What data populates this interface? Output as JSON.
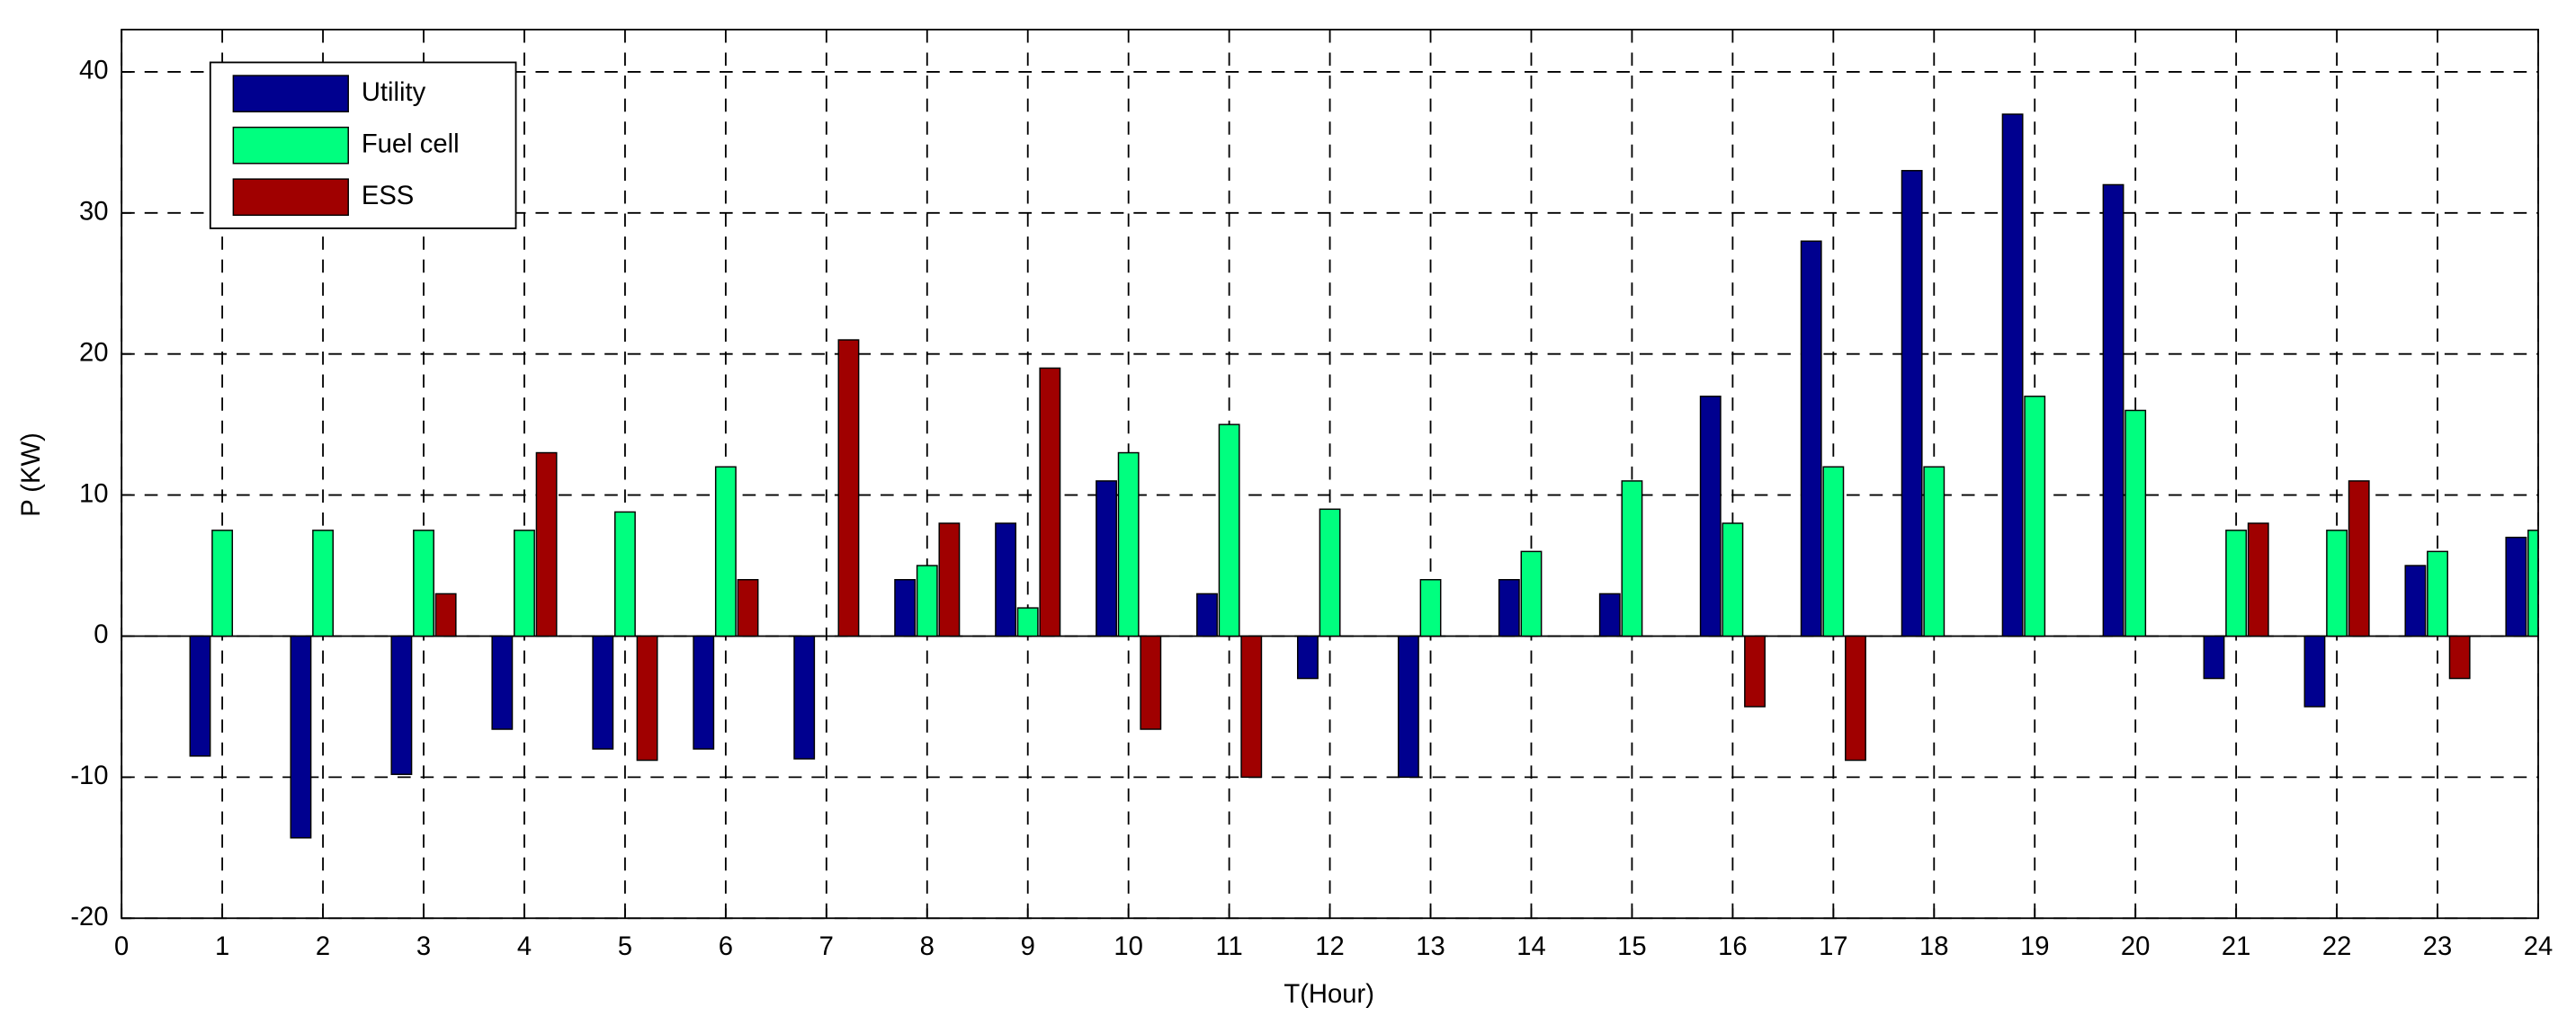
{
  "chart_data": {
    "type": "bar",
    "x_label": "T(Hour)",
    "y_label": "P (KW)",
    "x": [
      1,
      2,
      3,
      4,
      5,
      6,
      7,
      8,
      9,
      10,
      11,
      12,
      13,
      14,
      15,
      16,
      17,
      18,
      19,
      20,
      21,
      22,
      23,
      24
    ],
    "series": [
      {
        "name": "Utility",
        "color": "#00008f",
        "values": [
          -8.5,
          -14.3,
          -9.8,
          -6.6,
          -8,
          -8,
          -8.7,
          4,
          8,
          11,
          3,
          -3,
          -10,
          4,
          3,
          17,
          28,
          33,
          37,
          32,
          -3,
          -5,
          5,
          7
        ]
      },
      {
        "name": "Fuel cell",
        "color": "#00ff7f",
        "values": [
          7.5,
          7.5,
          7.5,
          7.5,
          8.8,
          12,
          0,
          5,
          2,
          13,
          15,
          9,
          4,
          6,
          11,
          8,
          12,
          12,
          17,
          16,
          7.5,
          7.5,
          6,
          7.5
        ]
      },
      {
        "name": "ESS",
        "color": "#a00000",
        "values": [
          0,
          0,
          3,
          13,
          -8.8,
          4,
          21,
          8,
          19,
          -6.6,
          -10,
          0,
          0,
          0,
          0,
          -5,
          -8.8,
          0,
          0,
          0,
          8,
          11,
          -3,
          0
        ]
      }
    ],
    "xlim": [
      0,
      24
    ],
    "xticks": [
      0,
      1,
      2,
      3,
      4,
      5,
      6,
      7,
      8,
      9,
      10,
      11,
      12,
      13,
      14,
      15,
      16,
      17,
      18,
      19,
      20,
      21,
      22,
      23,
      24
    ],
    "ylim": [
      -20,
      43
    ],
    "yticks": [
      -20,
      -10,
      0,
      10,
      20,
      30,
      40
    ],
    "grid": true,
    "legend": "upper-left"
  }
}
